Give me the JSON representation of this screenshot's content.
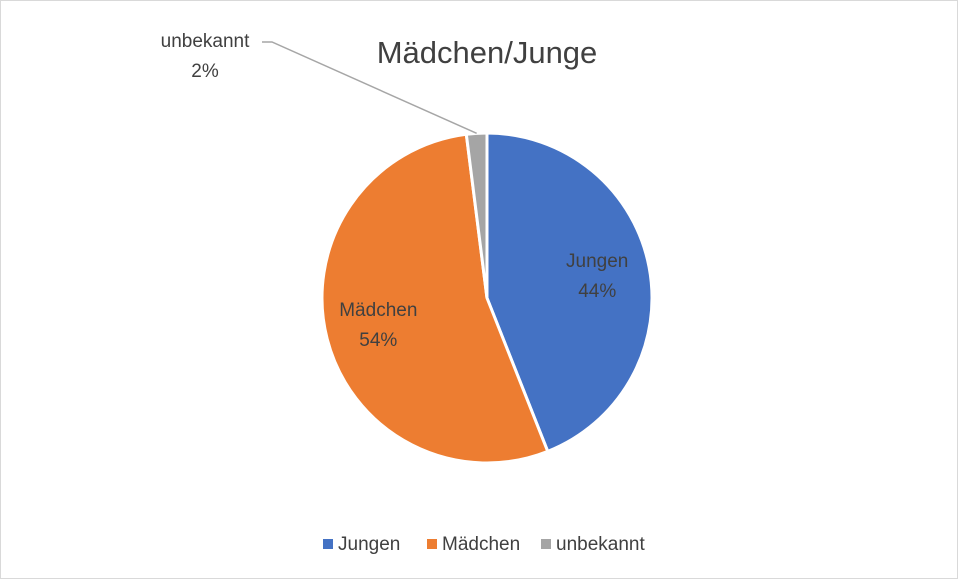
{
  "chart_data": {
    "type": "pie",
    "title": "Mädchen/Junge",
    "categories": [
      "Jungen",
      "Mädchen",
      "unbekannt"
    ],
    "values": [
      44,
      54,
      2
    ],
    "value_labels": [
      "44%",
      "54%",
      "2%"
    ],
    "colors": [
      "#4472c4",
      "#ed7d31",
      "#a5a5a5"
    ],
    "legend": "bottom"
  }
}
